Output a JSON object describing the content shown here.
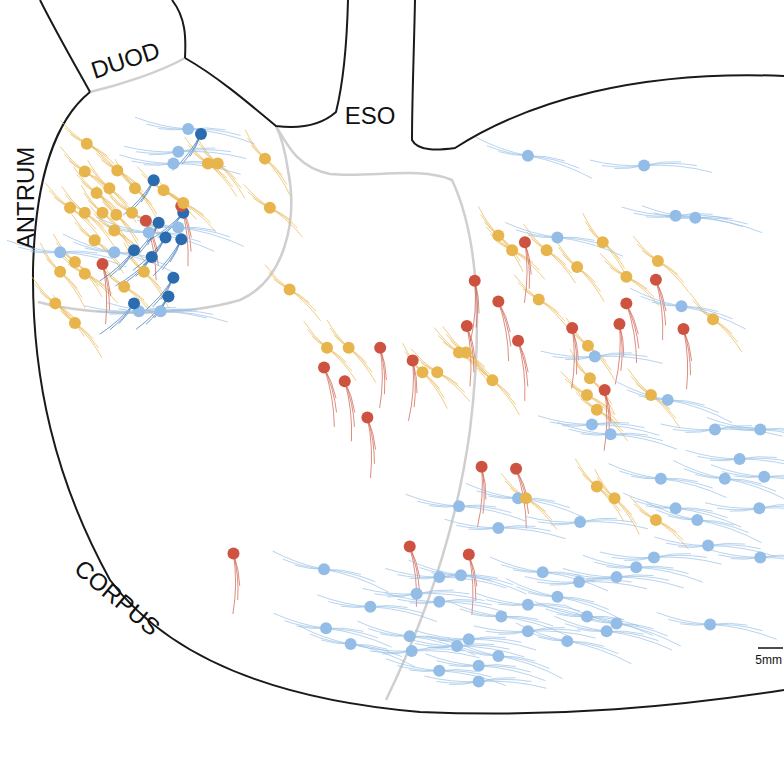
{
  "labels": {
    "duodenum": "DUOD",
    "esophagus": "ESO",
    "antrum": "ANTRUM",
    "corpus": "CORPUS"
  },
  "scale_bar": "5mm",
  "chart_data": {
    "type": "scatter",
    "xlim": [
      0,
      156.8
    ],
    "ylim": [
      0,
      156.8
    ],
    "tick_labels": false,
    "grid": false,
    "series": [
      {
        "color": "#e8b54c",
        "values": [
          [
            16.4,
            28
          ],
          [
            22.6,
            33.4
          ],
          [
            41,
            32
          ],
          [
            43,
            32
          ],
          [
            52.6,
            31
          ],
          [
            53.6,
            41
          ],
          [
            16,
            33.6
          ],
          [
            18.4,
            38
          ],
          [
            21,
            37
          ],
          [
            26.2,
            37
          ],
          [
            32,
            37.4
          ],
          [
            13,
            41
          ],
          [
            16,
            42
          ],
          [
            19.6,
            42
          ],
          [
            22.4,
            42.4
          ],
          [
            25.6,
            42
          ],
          [
            22,
            45.6
          ],
          [
            18,
            47.6
          ],
          [
            14,
            52
          ],
          [
            11,
            54
          ],
          [
            16,
            54.4
          ],
          [
            24,
            57
          ],
          [
            10,
            60.4
          ],
          [
            14,
            64.4
          ],
          [
            28,
            54
          ],
          [
            36,
            40
          ],
          [
            57.6,
            57.6
          ],
          [
            65.2,
            69.4
          ],
          [
            69.6,
            69.4
          ],
          [
            84.6,
            74.4
          ],
          [
            87.6,
            74.4
          ],
          [
            92,
            70.4
          ],
          [
            93.4,
            70.4
          ],
          [
            98.8,
            76
          ],
          [
            100,
            46.6
          ],
          [
            102.8,
            49.6
          ],
          [
            108.2,
            59.6
          ],
          [
            109.8,
            49.6
          ],
          [
            116,
            53
          ],
          [
            121.2,
            48
          ],
          [
            126,
            55
          ],
          [
            132.4,
            51.8
          ],
          [
            143.6,
            63.6
          ],
          [
            118.2,
            69
          ],
          [
            118.6,
            75.6
          ],
          [
            118,
            79
          ],
          [
            120,
            82
          ],
          [
            131,
            79
          ],
          [
            120,
            97.6
          ],
          [
            123.6,
            100
          ],
          [
            132,
            104.4
          ],
          [
            105.6,
            100
          ]
        ]
      },
      {
        "color": "#cd5340",
        "values": [
          [
            28.4,
            43.6
          ],
          [
            35.6,
            40.6
          ],
          [
            19.6,
            52.4
          ],
          [
            105.4,
            48
          ],
          [
            95.2,
            55.8
          ],
          [
            100,
            60
          ],
          [
            104,
            68
          ],
          [
            93.6,
            65
          ],
          [
            76,
            69.4
          ],
          [
            82.6,
            72
          ],
          [
            64.6,
            73.4
          ],
          [
            68.8,
            76.2
          ],
          [
            73.4,
            83.6
          ],
          [
            115,
            65.4
          ],
          [
            124.6,
            64.6
          ],
          [
            126,
            60.4
          ],
          [
            132,
            55.6
          ],
          [
            137.6,
            65.6
          ],
          [
            121.6,
            78
          ],
          [
            96.6,
            93.6
          ],
          [
            103.6,
            94
          ],
          [
            82,
            109.8
          ],
          [
            94,
            111.4
          ],
          [
            46.2,
            111.2
          ]
        ]
      },
      {
        "color": "#2b6cb0",
        "values": [
          [
            39.6,
            26
          ],
          [
            30,
            35.4
          ],
          [
            32.4,
            47
          ],
          [
            26,
            49.6
          ],
          [
            29.6,
            51
          ],
          [
            35.6,
            47.4
          ],
          [
            34,
            55.2
          ],
          [
            33,
            59
          ],
          [
            26,
            60.4
          ],
          [
            36,
            42
          ],
          [
            31,
            44
          ]
        ]
      },
      {
        "color": "#93bde6",
        "values": [
          [
            35,
            29.6
          ],
          [
            34,
            32
          ],
          [
            37,
            25
          ],
          [
            35,
            45
          ],
          [
            22,
            50
          ],
          [
            27,
            62
          ],
          [
            31.4,
            62
          ],
          [
            11,
            50
          ],
          [
            29,
            46
          ],
          [
            106,
            30.4
          ],
          [
            129.6,
            32.4
          ],
          [
            136,
            42.6
          ],
          [
            140,
            43
          ],
          [
            112,
            47
          ],
          [
            137.2,
            61
          ],
          [
            119.6,
            71.2
          ],
          [
            119,
            85
          ],
          [
            122.8,
            87
          ],
          [
            133,
            96
          ],
          [
            134.4,
            80
          ],
          [
            144,
            86
          ],
          [
            149,
            92
          ],
          [
            153.2,
            86
          ],
          [
            136,
            102
          ],
          [
            140.4,
            104.4
          ],
          [
            116.6,
            104.8
          ],
          [
            100,
            106
          ],
          [
            92,
            101.6
          ],
          [
            109,
            115
          ],
          [
            112,
            120
          ],
          [
            116.4,
            117
          ],
          [
            124,
            116
          ],
          [
            128,
            114
          ],
          [
            118,
            124
          ],
          [
            124,
            125.4
          ],
          [
            131.6,
            112
          ],
          [
            142.6,
            109.6
          ],
          [
            143,
            125.6
          ],
          [
            122,
            127
          ],
          [
            100,
            132
          ],
          [
            106,
            127
          ],
          [
            88,
            121
          ],
          [
            96,
            134
          ],
          [
            82,
            128
          ],
          [
            64.6,
            114.4
          ],
          [
            83.4,
            119.4
          ],
          [
            88,
            116
          ],
          [
            74,
            122
          ],
          [
            65,
            126.4
          ],
          [
            70,
            129.6
          ],
          [
            82.4,
            131
          ],
          [
            94,
            128.6
          ],
          [
            88,
            135
          ],
          [
            100.6,
            124
          ],
          [
            114,
            129
          ],
          [
            96,
            137.2
          ],
          [
            91.6,
            130
          ],
          [
            106,
            121.6
          ],
          [
            104,
            100
          ],
          [
            146,
            96
          ],
          [
            153,
            102
          ],
          [
            153.2,
            112
          ],
          [
            154,
            95.6
          ],
          [
            92.4,
            115.6
          ]
        ]
      }
    ]
  }
}
